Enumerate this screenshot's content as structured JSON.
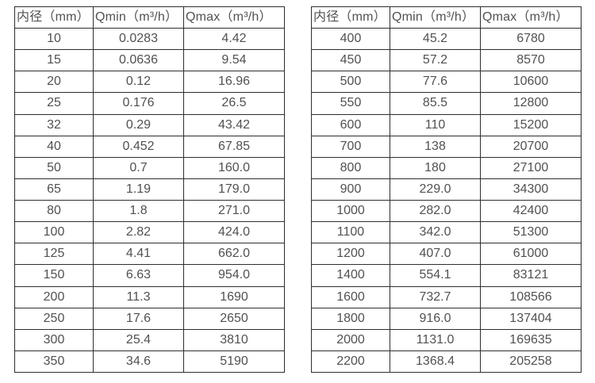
{
  "colors": {
    "background": "#ffffff",
    "border": "#2e2e2e",
    "text": "#515151"
  },
  "chart_data": [
    {
      "type": "table",
      "name": "flow-rate-table-small-diameters",
      "columns": [
        "内径（mm）",
        "Qmin（m³/h）",
        "Qmax（m³/h）"
      ],
      "rows": [
        [
          "10",
          "0.0283",
          "4.42"
        ],
        [
          "15",
          "0.0636",
          "9.54"
        ],
        [
          "20",
          "0.12",
          "16.96"
        ],
        [
          "25",
          "0.176",
          "26.5"
        ],
        [
          "32",
          "0.29",
          "43.42"
        ],
        [
          "40",
          "0.452",
          "67.85"
        ],
        [
          "50",
          "0.7",
          "160.0"
        ],
        [
          "65",
          "1.19",
          "179.0"
        ],
        [
          "80",
          "1.8",
          "271.0"
        ],
        [
          "100",
          "2.82",
          "424.0"
        ],
        [
          "125",
          "4.41",
          "662.0"
        ],
        [
          "150",
          "6.63",
          "954.0"
        ],
        [
          "200",
          "11.3",
          "1690"
        ],
        [
          "250",
          "17.6",
          "2650"
        ],
        [
          "300",
          "25.4",
          "3810"
        ],
        [
          "350",
          "34.6",
          "5190"
        ]
      ]
    },
    {
      "type": "table",
      "name": "flow-rate-table-large-diameters",
      "columns": [
        "内径（mm）",
        "Qmin（m³/h）",
        "Qmax（m³/h）"
      ],
      "rows": [
        [
          "400",
          "45.2",
          "6780"
        ],
        [
          "450",
          "57.2",
          "8570"
        ],
        [
          "500",
          "77.6",
          "10600"
        ],
        [
          "550",
          "85.5",
          "12800"
        ],
        [
          "600",
          "110",
          "15200"
        ],
        [
          "700",
          "138",
          "20700"
        ],
        [
          "800",
          "180",
          "27100"
        ],
        [
          "900",
          "229.0",
          "34300"
        ],
        [
          "1000",
          "282.0",
          "42400"
        ],
        [
          "1100",
          "342.0",
          "51300"
        ],
        [
          "1200",
          "407.0",
          "61000"
        ],
        [
          "1400",
          "554.1",
          "83121"
        ],
        [
          "1600",
          "732.7",
          "108566"
        ],
        [
          "1800",
          "916.0",
          "137404"
        ],
        [
          "2000",
          "1131.0",
          "169635"
        ],
        [
          "2200",
          "1368.4",
          "205258"
        ]
      ]
    }
  ]
}
